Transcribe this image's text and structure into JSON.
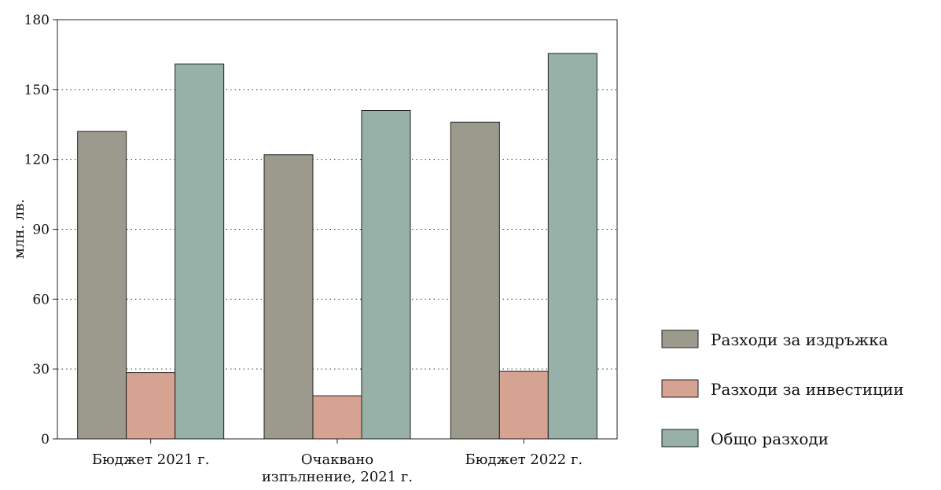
{
  "chart_data": {
    "type": "bar",
    "categories": [
      "Бюджет 2021 г.",
      "Очаквано изпълнение, 2021 г.",
      "Бюджет 2022 г."
    ],
    "category_lines": [
      [
        "Бюджет 2021 г."
      ],
      [
        "Очаквано",
        "изпълнение,  2021 г."
      ],
      [
        "Бюджет 2022 г."
      ]
    ],
    "series": [
      {
        "name": "Разходи за издръжка",
        "values": [
          132,
          122,
          136
        ],
        "color": "#9c998d"
      },
      {
        "name": "Разходи за инвестиции",
        "values": [
          28.5,
          18.5,
          29
        ],
        "color": "#d6a393"
      },
      {
        "name": "Общо разходи",
        "values": [
          161,
          141,
          165.5
        ],
        "color": "#97b1a9"
      }
    ],
    "title": "",
    "xlabel": "",
    "ylabel": "млн. лв.",
    "ylim": [
      0,
      180
    ],
    "yticks": [
      0,
      30,
      60,
      90,
      120,
      150,
      180
    ],
    "grid": true,
    "legend_position": "right"
  }
}
